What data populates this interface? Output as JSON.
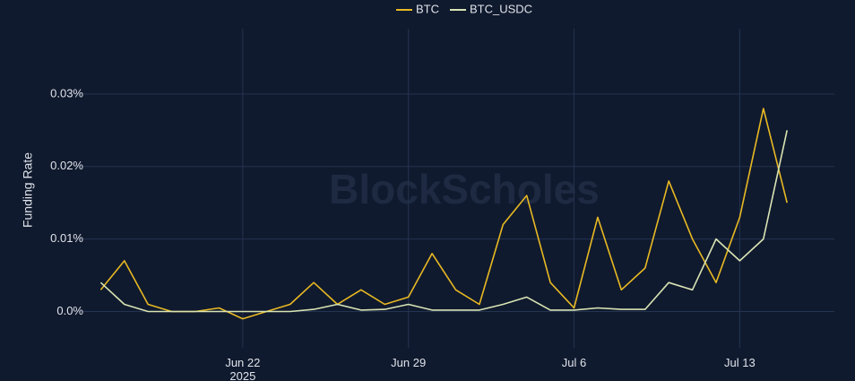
{
  "chart_data": {
    "type": "line",
    "y_label": "Funding Rate",
    "watermark": "BlockScholes",
    "x": [
      "2025-06-16",
      "2025-06-17",
      "2025-06-18",
      "2025-06-19",
      "2025-06-20",
      "2025-06-21",
      "2025-06-22",
      "2025-06-23",
      "2025-06-24",
      "2025-06-25",
      "2025-06-26",
      "2025-06-27",
      "2025-06-28",
      "2025-06-29",
      "2025-06-30",
      "2025-07-01",
      "2025-07-02",
      "2025-07-03",
      "2025-07-04",
      "2025-07-05",
      "2025-07-06",
      "2025-07-07",
      "2025-07-08",
      "2025-07-09",
      "2025-07-10",
      "2025-07-11",
      "2025-07-12",
      "2025-07-13",
      "2025-07-14",
      "2025-07-15"
    ],
    "series": [
      {
        "name": "BTC",
        "color": "#e8b923",
        "values": [
          0.003,
          0.007,
          0.001,
          0,
          0,
          0.0005,
          -0.001,
          0,
          0.001,
          0.004,
          0.001,
          0.003,
          0.001,
          0.002,
          0.008,
          0.003,
          0.001,
          0.012,
          0.016,
          0.004,
          0.0005,
          0.013,
          0.003,
          0.006,
          0.018,
          0.01,
          0.004,
          0.013,
          0.028,
          0.015
        ]
      },
      {
        "name": "BTC_USDC",
        "color": "#d9e4b4",
        "values": [
          0.004,
          0.001,
          0,
          0,
          0,
          0,
          0,
          0,
          0,
          0.0003,
          0.001,
          0.0002,
          0.0003,
          0.001,
          0.0002,
          0.0002,
          0.0002,
          0.001,
          0.002,
          0.0002,
          0.0002,
          0.0005,
          0.0003,
          0.0003,
          0.004,
          0.003,
          0.01,
          0.007,
          0.01,
          0.025
        ]
      }
    ],
    "xlim": [
      "2025-06-15",
      "2025-07-17"
    ],
    "xticks": [
      {
        "value": "2025-06-22",
        "label": "Jun 22\n2025"
      },
      {
        "value": "2025-06-29",
        "label": "Jun 29"
      },
      {
        "value": "2025-07-06",
        "label": "Jul 6"
      },
      {
        "value": "2025-07-13",
        "label": "Jul 13"
      }
    ],
    "ylim": [
      -0.005,
      0.039
    ],
    "yticks": [
      {
        "value": 0,
        "label": "0.0%"
      },
      {
        "value": 0.01,
        "label": "0.01%"
      },
      {
        "value": 0.02,
        "label": "0.02%"
      },
      {
        "value": 0.03,
        "label": "0.03%"
      }
    ],
    "grid": true
  }
}
